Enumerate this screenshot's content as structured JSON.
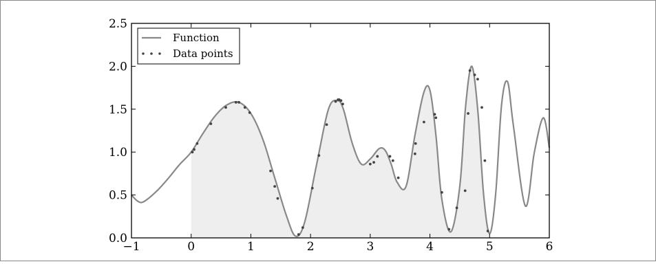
{
  "chart_data": {
    "type": "line",
    "title": "",
    "xlabel": "",
    "ylabel": "",
    "xlim": [
      -1,
      6
    ],
    "ylim": [
      0,
      2.5
    ],
    "x_ticks": [
      -1,
      0,
      1,
      2,
      3,
      4,
      5,
      6
    ],
    "y_ticks": [
      0.0,
      0.5,
      1.0,
      1.5,
      2.0,
      2.5
    ],
    "x_tick_labels": [
      "−1",
      "0",
      "1",
      "2",
      "3",
      "4",
      "5",
      "6"
    ],
    "y_tick_labels": [
      "0.0",
      "0.5",
      "1.0",
      "1.5",
      "2.0",
      "2.5"
    ],
    "fill_between": [
      0,
      5
    ],
    "legend": {
      "position": "top-left",
      "entries": [
        {
          "label": "Function",
          "style": "line"
        },
        {
          "label": "Data points",
          "style": "dots"
        }
      ]
    },
    "series": [
      {
        "name": "Function",
        "kind": "line",
        "x": [
          -1.0,
          -0.9,
          -0.8,
          -0.6,
          -0.4,
          -0.2,
          0.0,
          0.2,
          0.4,
          0.6,
          0.8,
          1.0,
          1.2,
          1.4,
          1.6,
          1.75,
          1.9,
          2.1,
          2.3,
          2.45,
          2.55,
          2.7,
          2.85,
          3.0,
          3.15,
          3.25,
          3.35,
          3.45,
          3.6,
          3.75,
          3.9,
          4.0,
          4.1,
          4.2,
          4.35,
          4.5,
          4.6,
          4.7,
          4.8,
          4.9,
          5.0,
          5.1,
          5.2,
          5.3,
          5.4,
          5.6,
          5.75,
          5.9,
          6.0
        ],
        "y": [
          0.5,
          0.43,
          0.42,
          0.53,
          0.68,
          0.85,
          1.0,
          1.22,
          1.42,
          1.55,
          1.58,
          1.45,
          1.15,
          0.7,
          0.25,
          0.02,
          0.18,
          0.85,
          1.5,
          1.6,
          1.5,
          1.1,
          0.86,
          0.92,
          1.04,
          1.02,
          0.86,
          0.65,
          0.6,
          1.2,
          1.7,
          1.72,
          1.2,
          0.45,
          0.07,
          0.6,
          1.55,
          2.0,
          1.5,
          0.5,
          0.05,
          0.5,
          1.55,
          1.82,
          1.3,
          0.37,
          1.0,
          1.4,
          1.05
        ]
      },
      {
        "name": "Data points",
        "kind": "scatter",
        "x": [
          0.02,
          0.05,
          0.1,
          0.33,
          0.58,
          0.75,
          0.8,
          0.9,
          0.98,
          1.33,
          1.4,
          1.45,
          1.8,
          1.87,
          2.03,
          2.14,
          2.27,
          2.42,
          2.46,
          2.48,
          2.51,
          2.54,
          3.0,
          3.06,
          3.12,
          3.33,
          3.38,
          3.47,
          3.75,
          3.76,
          3.9,
          4.08,
          4.1,
          4.2,
          4.32,
          4.45,
          4.59,
          4.64,
          4.67,
          4.75,
          4.8,
          4.87,
          4.92,
          4.97
        ],
        "y": [
          1.0,
          1.03,
          1.1,
          1.33,
          1.52,
          1.58,
          1.58,
          1.52,
          1.46,
          0.78,
          0.6,
          0.46,
          0.04,
          0.12,
          0.58,
          0.96,
          1.32,
          1.59,
          1.61,
          1.61,
          1.6,
          1.56,
          0.86,
          0.88,
          0.95,
          0.95,
          0.9,
          0.7,
          0.98,
          1.1,
          1.35,
          1.44,
          1.4,
          0.53,
          0.1,
          0.35,
          0.55,
          1.45,
          1.95,
          1.9,
          1.85,
          1.52,
          0.9,
          0.08
        ]
      }
    ]
  }
}
